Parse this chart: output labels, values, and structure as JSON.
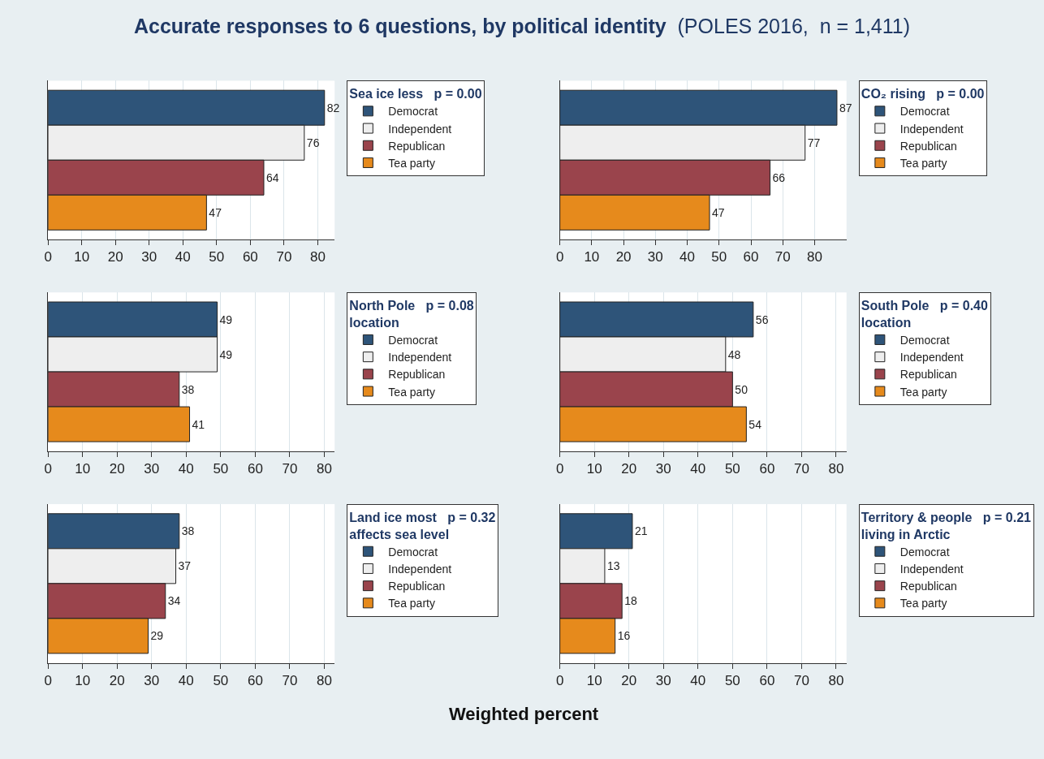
{
  "chart_data": [
    {
      "type": "other",
      "title": "Accurate responses to 6 questions, by political identity",
      "subtitle": "(POLES 2016,  n = 1,411)",
      "annotations": [
        "Weighted percent"
      ]
    },
    {
      "type": "bar",
      "orientation": "horizontal",
      "legend_title": "Sea ice less   p = 0.00",
      "categories": [
        null
      ],
      "series": [
        {
          "name": "Democrat",
          "color": "#2e5479",
          "values": [
            82
          ]
        },
        {
          "name": "Independent",
          "color": "#eeeeee",
          "values": [
            76
          ]
        },
        {
          "name": "Republican",
          "color": "#9a444c",
          "values": [
            64
          ]
        },
        {
          "name": "Tea party",
          "color": "#e68a1c",
          "values": [
            47
          ]
        }
      ],
      "xlim": [
        0,
        85
      ],
      "xticks": [
        0,
        10,
        20,
        30,
        40,
        50,
        60,
        70,
        80
      ],
      "grid": "x",
      "legend": "right",
      "tick_labels": "x",
      "data_labels": true
    },
    {
      "type": "bar",
      "orientation": "horizontal",
      "legend_title": "CO₂ rising   p = 0.00",
      "categories": [
        null
      ],
      "series": [
        {
          "name": "Democrat",
          "color": "#2e5479",
          "values": [
            87
          ]
        },
        {
          "name": "Independent",
          "color": "#eeeeee",
          "values": [
            77
          ]
        },
        {
          "name": "Republican",
          "color": "#9a444c",
          "values": [
            66
          ]
        },
        {
          "name": "Tea party",
          "color": "#e68a1c",
          "values": [
            47
          ]
        }
      ],
      "xlim": [
        0,
        90
      ],
      "xticks": [
        0,
        10,
        20,
        30,
        40,
        50,
        60,
        70,
        80
      ],
      "grid": "x",
      "legend": "right",
      "tick_labels": "x",
      "data_labels": true
    },
    {
      "type": "bar",
      "orientation": "horizontal",
      "legend_title": "North Pole   p = 0.08\nlocation",
      "categories": [
        null
      ],
      "series": [
        {
          "name": "Democrat",
          "color": "#2e5479",
          "values": [
            49
          ]
        },
        {
          "name": "Independent",
          "color": "#eeeeee",
          "values": [
            49
          ]
        },
        {
          "name": "Republican",
          "color": "#9a444c",
          "values": [
            38
          ]
        },
        {
          "name": "Tea party",
          "color": "#e68a1c",
          "values": [
            41
          ]
        }
      ],
      "xlim": [
        0,
        83
      ],
      "xticks": [
        0,
        10,
        20,
        30,
        40,
        50,
        60,
        70,
        80
      ],
      "grid": "x",
      "legend": "right",
      "tick_labels": "x",
      "data_labels": true
    },
    {
      "type": "bar",
      "orientation": "horizontal",
      "legend_title": "South Pole   p = 0.40\nlocation",
      "categories": [
        null
      ],
      "series": [
        {
          "name": "Democrat",
          "color": "#2e5479",
          "values": [
            56
          ]
        },
        {
          "name": "Independent",
          "color": "#eeeeee",
          "values": [
            48
          ]
        },
        {
          "name": "Republican",
          "color": "#9a444c",
          "values": [
            50
          ]
        },
        {
          "name": "Tea party",
          "color": "#e68a1c",
          "values": [
            54
          ]
        }
      ],
      "xlim": [
        0,
        83
      ],
      "xticks": [
        0,
        10,
        20,
        30,
        40,
        50,
        60,
        70,
        80
      ],
      "grid": "x",
      "legend": "right",
      "tick_labels": "x",
      "data_labels": true
    },
    {
      "type": "bar",
      "orientation": "horizontal",
      "legend_title": "Land ice most   p = 0.32\naffects sea level",
      "categories": [
        null
      ],
      "series": [
        {
          "name": "Democrat",
          "color": "#2e5479",
          "values": [
            38
          ]
        },
        {
          "name": "Independent",
          "color": "#eeeeee",
          "values": [
            37
          ]
        },
        {
          "name": "Republican",
          "color": "#9a444c",
          "values": [
            34
          ]
        },
        {
          "name": "Tea party",
          "color": "#e68a1c",
          "values": [
            29
          ]
        }
      ],
      "xlim": [
        0,
        83
      ],
      "xticks": [
        0,
        10,
        20,
        30,
        40,
        50,
        60,
        70,
        80
      ],
      "grid": "x",
      "legend": "right",
      "tick_labels": "x",
      "data_labels": true
    },
    {
      "type": "bar",
      "orientation": "horizontal",
      "legend_title": "Territory & people   p = 0.21\nliving in Arctic",
      "categories": [
        null
      ],
      "series": [
        {
          "name": "Democrat",
          "color": "#2e5479",
          "values": [
            21
          ]
        },
        {
          "name": "Independent",
          "color": "#eeeeee",
          "values": [
            13
          ]
        },
        {
          "name": "Republican",
          "color": "#9a444c",
          "values": [
            18
          ]
        },
        {
          "name": "Tea party",
          "color": "#e68a1c",
          "values": [
            16
          ]
        }
      ],
      "xlim": [
        0,
        83
      ],
      "xticks": [
        0,
        10,
        20,
        30,
        40,
        50,
        60,
        70,
        80
      ],
      "grid": "x",
      "legend": "right",
      "tick_labels": "x",
      "data_labels": true
    }
  ]
}
